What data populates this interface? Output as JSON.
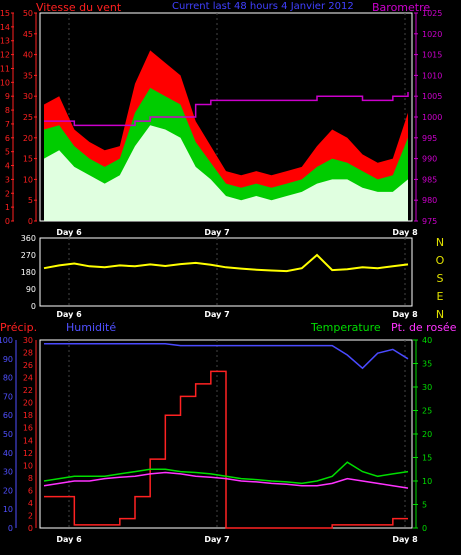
{
  "chart_data": [
    {
      "type": "line",
      "title": "Current last 48 hours 4 Janvier 2012",
      "left_axis_label": "Vitesse du vent",
      "right_axis_label": "Barometre",
      "x_tick_labels": [
        "Day 6",
        "Day 7",
        "Day 8"
      ],
      "wind_scale": {
        "ylim": [
          0,
          15
        ],
        "ticks": [
          "0",
          "1",
          "2",
          "3",
          "4",
          "5",
          "6",
          "7",
          "8",
          "9",
          "10",
          "11",
          "12",
          "13",
          "14",
          "15"
        ]
      },
      "gust_scale": {
        "ylim": [
          0,
          50
        ],
        "ticks": [
          "0",
          "5",
          "10",
          "15",
          "20",
          "25",
          "30",
          "35",
          "40",
          "45",
          "50"
        ]
      },
      "baro_scale": {
        "ylim": [
          975,
          1025
        ],
        "ticks": [
          "975",
          "980",
          "985",
          "990",
          "995",
          "1000",
          "1005",
          "1010",
          "1015",
          "1020",
          "1025"
        ]
      },
      "x_hours": [
        0,
        2,
        4,
        6,
        8,
        10,
        12,
        14,
        16,
        18,
        20,
        22,
        24,
        26,
        28,
        30,
        32,
        34,
        36,
        38,
        40,
        42,
        44,
        46,
        48
      ],
      "series": [
        {
          "name": "gust",
          "color": "#ff0000",
          "values_kmh": [
            28,
            30,
            22,
            19,
            17,
            18,
            33,
            41,
            38,
            35,
            24,
            18,
            12,
            11,
            12,
            11,
            12,
            13,
            18,
            22,
            20,
            16,
            14,
            15,
            26
          ]
        },
        {
          "name": "average",
          "color": "#00cc00",
          "values_kmh": [
            22,
            23,
            18,
            15,
            13,
            15,
            26,
            32,
            30,
            28,
            19,
            14,
            9,
            8,
            9,
            8,
            9,
            10,
            13,
            15,
            14,
            12,
            10,
            11,
            20
          ]
        },
        {
          "name": "low",
          "color": "#e0ffe0",
          "values_kmh": [
            15,
            17,
            13,
            11,
            9,
            11,
            18,
            23,
            22,
            20,
            13,
            10,
            6,
            5,
            6,
            5,
            6,
            7,
            9,
            10,
            10,
            8,
            7,
            7,
            10
          ]
        },
        {
          "name": "pressure",
          "color": "#cc00cc",
          "values_hpa": [
            999,
            999,
            998,
            998,
            998,
            998,
            999,
            1000,
            1000,
            1000,
            1003,
            1004,
            1004,
            1004,
            1004,
            1004,
            1004,
            1004,
            1005,
            1005,
            1005,
            1004,
            1004,
            1005,
            1006
          ]
        }
      ]
    },
    {
      "type": "line",
      "right_label_letters": [
        "N",
        "O",
        "S",
        "E",
        "N"
      ],
      "x_tick_labels": [
        "Day 6",
        "Day 7",
        "Day 8"
      ],
      "y_ticks": [
        "360",
        "270",
        "180",
        "90",
        "0"
      ],
      "ylim": [
        0,
        360
      ],
      "series": [
        {
          "name": "wind direction",
          "color": "#ffff00",
          "values_deg": [
            200,
            215,
            225,
            210,
            205,
            215,
            210,
            220,
            212,
            222,
            228,
            218,
            205,
            198,
            192,
            188,
            185,
            200,
            270,
            190,
            195,
            205,
            200,
            210,
            220
          ]
        }
      ]
    },
    {
      "type": "line",
      "labels": {
        "precip": "Précip.",
        "humidity": "Humidité",
        "temperature": "Temperature",
        "dewpoint": "Pt. de rosée"
      },
      "x_tick_labels": [
        "Day 6",
        "Day 7",
        "Day 8"
      ],
      "humidity_scale": {
        "ylim": [
          0,
          100
        ],
        "ticks": [
          "0",
          "10",
          "20",
          "30",
          "40",
          "50",
          "60",
          "70",
          "80",
          "90",
          "100"
        ]
      },
      "precip_scale": {
        "ylim": [
          0,
          30
        ],
        "ticks": [
          "0",
          "2",
          "4",
          "6",
          "8",
          "10",
          "12",
          "14",
          "16",
          "18",
          "20",
          "22",
          "24",
          "26",
          "28",
          "30"
        ]
      },
      "temp_scale": {
        "ylim": [
          0,
          40
        ],
        "ticks": [
          "0",
          "5",
          "10",
          "15",
          "20",
          "25",
          "30",
          "35",
          "40"
        ]
      },
      "series": [
        {
          "name": "humidity",
          "color": "#4a4aff",
          "values": [
            98,
            98,
            98,
            98,
            98,
            98,
            98,
            98,
            98,
            97,
            97,
            97,
            97,
            97,
            97,
            97,
            97,
            97,
            97,
            97,
            92,
            85,
            93,
            95,
            90
          ]
        },
        {
          "name": "precip",
          "color": "#ff2222",
          "values": [
            5,
            5,
            0.5,
            0.5,
            0.5,
            1.5,
            5,
            11,
            18,
            21,
            23,
            25,
            0,
            0,
            0,
            0,
            0,
            0,
            0,
            0.5,
            0.5,
            0.5,
            0.5,
            1.5,
            1.5
          ]
        },
        {
          "name": "temperature",
          "color": "#00dd00",
          "values": [
            10,
            10.5,
            11,
            11,
            11,
            11.5,
            12,
            12.5,
            12.5,
            12,
            11.8,
            11.5,
            11,
            10.5,
            10.3,
            10,
            9.8,
            9.5,
            10,
            11,
            14,
            12,
            11,
            11.5,
            12
          ]
        },
        {
          "name": "dewpoint",
          "color": "#ff33ff",
          "values": [
            9,
            9.5,
            10,
            10,
            10.5,
            10.8,
            11,
            11.5,
            11.8,
            11.5,
            11,
            10.8,
            10.5,
            10,
            9.8,
            9.5,
            9.3,
            9,
            9,
            9.5,
            10.5,
            10,
            9.5,
            9,
            8.5
          ]
        }
      ]
    }
  ]
}
